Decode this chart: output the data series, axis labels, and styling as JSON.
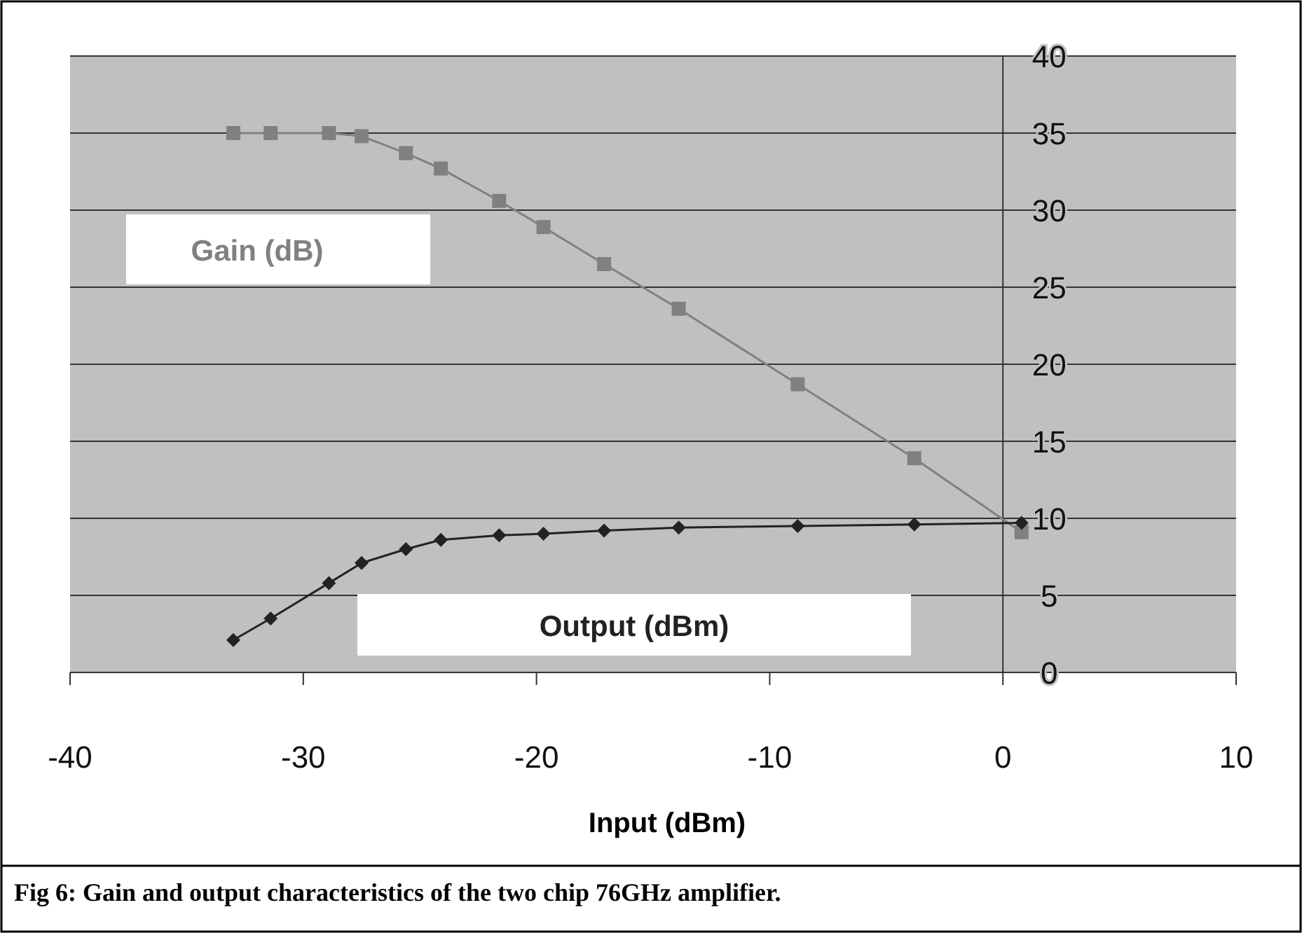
{
  "chart_data": {
    "type": "line",
    "xlabel": "Input (dBm)",
    "x": [
      -33,
      -31.4,
      -28.9,
      -27.5,
      -25.6,
      -24.1,
      -21.6,
      -19.7,
      -17.1,
      -13.9,
      -8.8,
      -3.8,
      0.8
    ],
    "series": [
      {
        "name": "Gain (dB)",
        "color": "#808080",
        "marker": "square",
        "values": [
          35,
          35,
          35,
          34.8,
          33.7,
          32.7,
          30.6,
          28.9,
          26.5,
          23.6,
          18.7,
          13.9,
          9.1
        ]
      },
      {
        "name": "Output (dBm)",
        "color": "#222222",
        "marker": "diamond",
        "values": [
          2.1,
          3.5,
          5.8,
          7.1,
          8,
          8.6,
          8.9,
          9,
          9.2,
          9.4,
          9.5,
          9.6,
          9.7
        ]
      }
    ],
    "xlim": [
      -40,
      10
    ],
    "xticks": [
      -40,
      -30,
      -20,
      -10,
      0,
      10
    ],
    "ylim": [
      0,
      40
    ],
    "yticks": [
      0,
      5,
      10,
      15,
      20,
      25,
      30,
      35,
      40
    ],
    "grid": "y",
    "annotations": [
      "Fig 6: Gain and output characteristics of the two chip 76GHz amplifier."
    ]
  }
}
